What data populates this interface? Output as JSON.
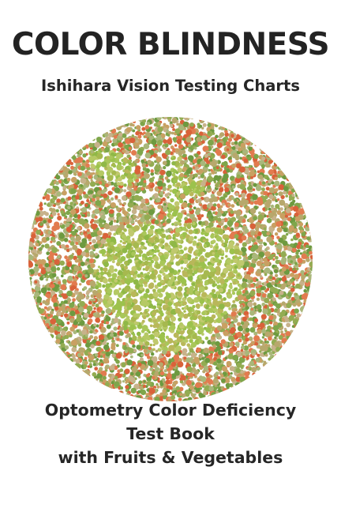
{
  "cover": {
    "title": "COLOR BLINDNESS",
    "subtitle": "Ishihara Vision Testing Charts",
    "bottom_lines": [
      "Optometry Color Deficiency",
      "Test Book",
      "with Fruits & Vegetables"
    ]
  },
  "plate": {
    "figure": "apple",
    "background_dot_colors": [
      "#d9623a",
      "#e27b4f",
      "#c9a062",
      "#b7a86c",
      "#93ac52",
      "#6d9a40",
      "#7ea64b",
      "#a9b77a",
      "#c7b28a"
    ],
    "figure_dot_colors": [
      "#9cc24d",
      "#a9c75a",
      "#b5c964",
      "#8fb847",
      "#c0c96e",
      "#a6b94f",
      "#b9b75a"
    ]
  },
  "colors": {
    "text": "#232323",
    "background": "#ffffff"
  }
}
